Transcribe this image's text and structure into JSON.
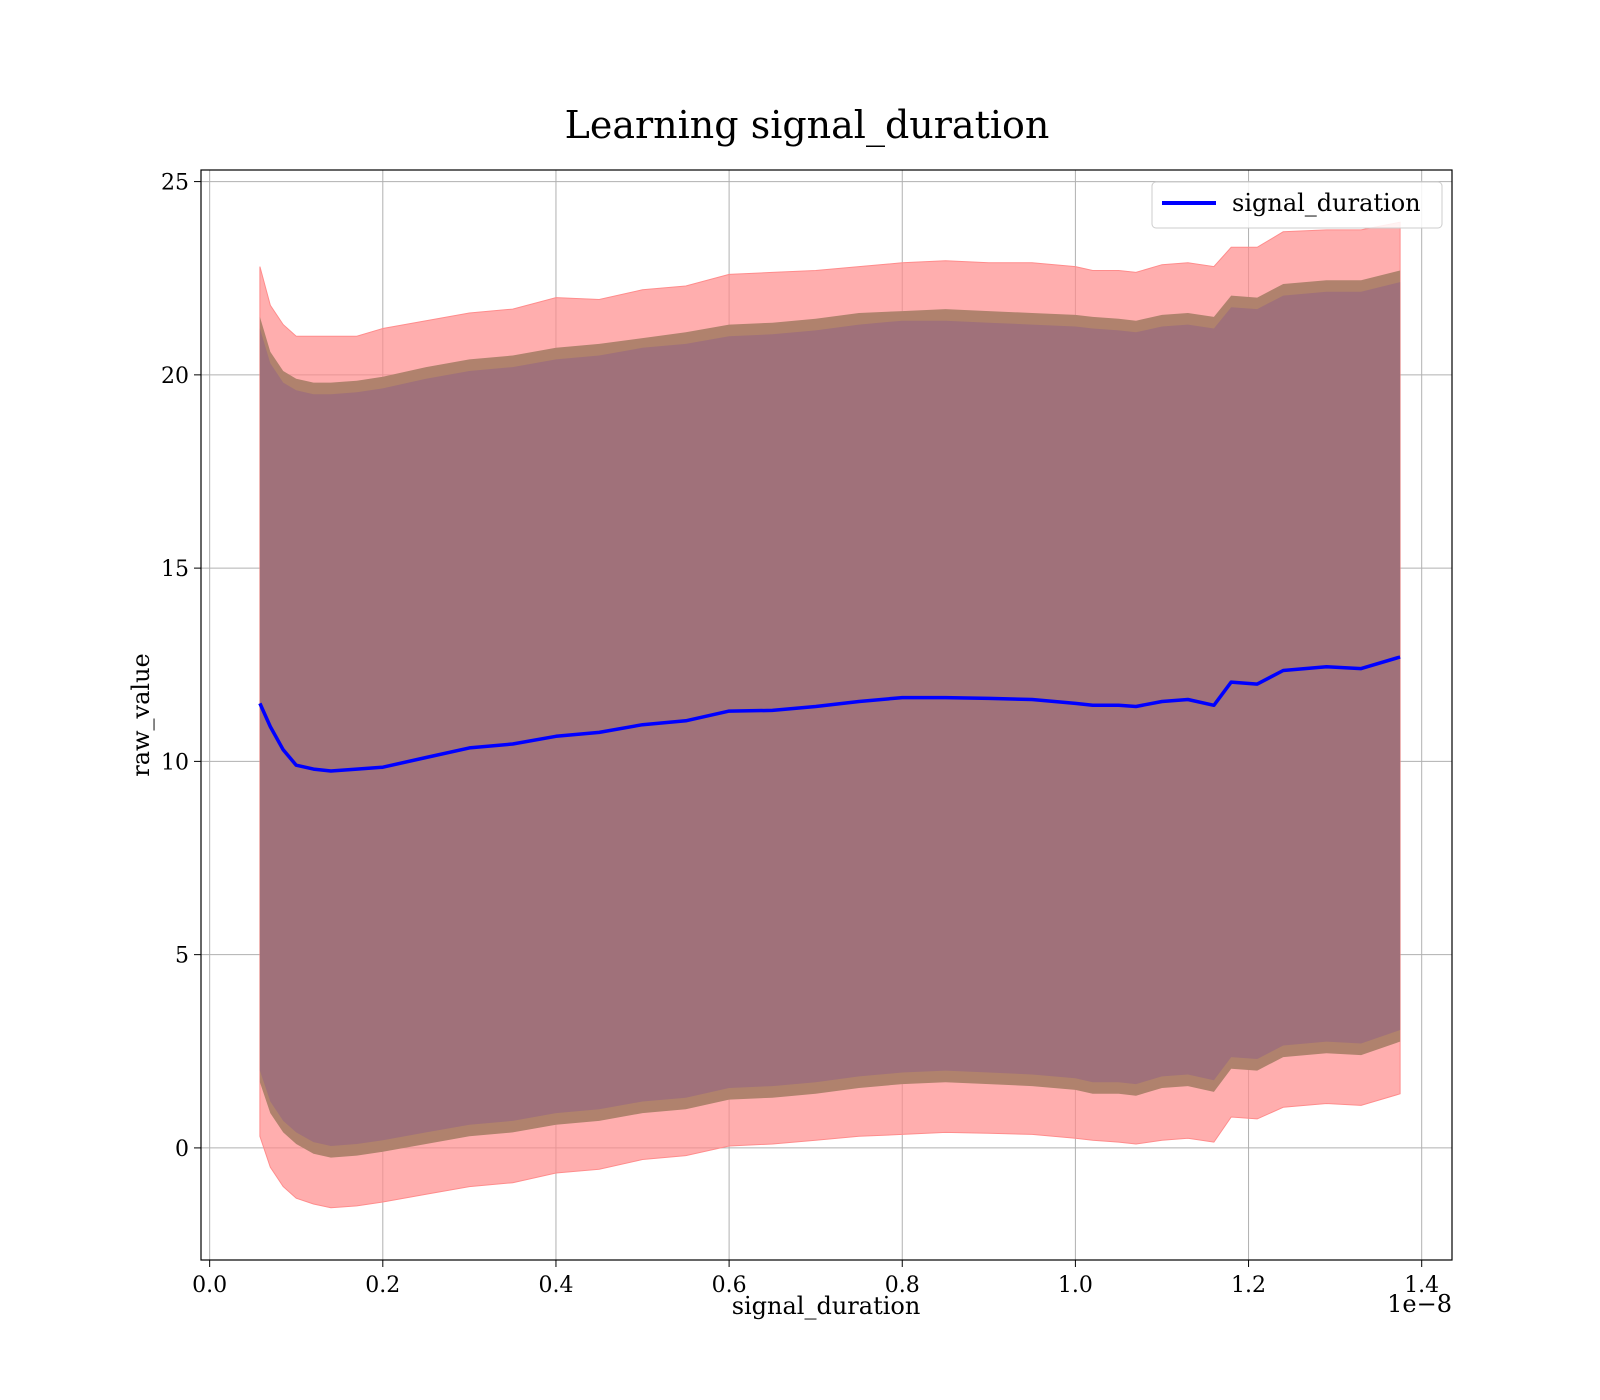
{
  "chart_data": {
    "type": "line",
    "title": "Learning signal_duration",
    "xlabel": "signal_duration",
    "ylabel": "raw_value",
    "x_offset_label": "1e−8",
    "x_scale": 1e-08,
    "xlim": [
      -0.01,
      1.435
    ],
    "ylim": [
      -2.9,
      25.3
    ],
    "x_ticks": [
      0.0,
      0.2,
      0.4,
      0.6,
      0.8,
      1.0,
      1.2,
      1.4
    ],
    "x_tick_labels": [
      "0.0",
      "0.2",
      "0.4",
      "0.6",
      "0.8",
      "1.0",
      "1.2",
      "1.4"
    ],
    "y_ticks": [
      0,
      5,
      10,
      15,
      20,
      25
    ],
    "y_tick_labels": [
      "0",
      "5",
      "10",
      "15",
      "20",
      "25"
    ],
    "grid": true,
    "legend": {
      "placement": "top-right",
      "entries": [
        "signal_duration"
      ]
    },
    "colors": {
      "line": "#0000ff",
      "outer_band": "#ff8c8c",
      "mid_band": "#b0826d",
      "inner_band": "#a0717a",
      "grid": "#b0b0b0"
    },
    "x": [
      0.058,
      0.07,
      0.085,
      0.1,
      0.12,
      0.14,
      0.17,
      0.2,
      0.25,
      0.3,
      0.35,
      0.4,
      0.45,
      0.5,
      0.55,
      0.6,
      0.65,
      0.7,
      0.75,
      0.8,
      0.85,
      0.9,
      0.95,
      1.0,
      1.02,
      1.05,
      1.07,
      1.1,
      1.13,
      1.16,
      1.18,
      1.21,
      1.24,
      1.29,
      1.33,
      1.375
    ],
    "series": [
      {
        "name": "signal_duration",
        "values": [
          11.5,
          10.9,
          10.3,
          9.9,
          9.8,
          9.75,
          9.8,
          9.85,
          10.1,
          10.35,
          10.45,
          10.65,
          10.75,
          10.95,
          11.05,
          11.3,
          11.32,
          11.42,
          11.55,
          11.65,
          11.65,
          11.63,
          11.6,
          11.5,
          11.45,
          11.45,
          11.42,
          11.55,
          11.6,
          11.45,
          12.05,
          12.0,
          12.35,
          12.45,
          12.4,
          12.7
        ]
      }
    ],
    "bands": [
      {
        "role": "outer",
        "upper": [
          22.8,
          21.8,
          21.3,
          21.0,
          21.0,
          21.0,
          21.0,
          21.2,
          21.4,
          21.6,
          21.7,
          22.0,
          21.95,
          22.2,
          22.3,
          22.6,
          22.65,
          22.7,
          22.8,
          22.9,
          22.95,
          22.9,
          22.9,
          22.8,
          22.7,
          22.7,
          22.65,
          22.85,
          22.9,
          22.8,
          23.3,
          23.3,
          23.7,
          23.75,
          23.75,
          23.95
        ],
        "lower": [
          0.3,
          -0.5,
          -1.0,
          -1.3,
          -1.45,
          -1.55,
          -1.5,
          -1.4,
          -1.2,
          -1.0,
          -0.9,
          -0.65,
          -0.55,
          -0.3,
          -0.2,
          0.05,
          0.1,
          0.2,
          0.3,
          0.35,
          0.4,
          0.38,
          0.35,
          0.25,
          0.2,
          0.15,
          0.1,
          0.2,
          0.25,
          0.15,
          0.8,
          0.75,
          1.05,
          1.15,
          1.1,
          1.4
        ]
      },
      {
        "role": "middle",
        "upper": [
          21.5,
          20.6,
          20.1,
          19.9,
          19.8,
          19.8,
          19.85,
          19.95,
          20.2,
          20.4,
          20.5,
          20.7,
          20.8,
          20.95,
          21.1,
          21.3,
          21.35,
          21.45,
          21.6,
          21.65,
          21.7,
          21.65,
          21.6,
          21.55,
          21.5,
          21.45,
          21.4,
          21.55,
          21.6,
          21.5,
          22.05,
          22.0,
          22.35,
          22.45,
          22.45,
          22.7
        ],
        "lower": [
          1.7,
          0.9,
          0.4,
          0.1,
          -0.15,
          -0.25,
          -0.2,
          -0.1,
          0.1,
          0.3,
          0.4,
          0.6,
          0.7,
          0.9,
          1.0,
          1.25,
          1.3,
          1.4,
          1.55,
          1.65,
          1.7,
          1.65,
          1.6,
          1.5,
          1.4,
          1.4,
          1.35,
          1.55,
          1.6,
          1.45,
          2.05,
          2.0,
          2.35,
          2.45,
          2.4,
          2.75
        ]
      },
      {
        "role": "inner",
        "upper": [
          21.2,
          20.3,
          19.8,
          19.6,
          19.5,
          19.5,
          19.55,
          19.65,
          19.9,
          20.1,
          20.2,
          20.4,
          20.5,
          20.7,
          20.8,
          21.0,
          21.05,
          21.15,
          21.3,
          21.4,
          21.4,
          21.35,
          21.3,
          21.25,
          21.2,
          21.15,
          21.1,
          21.25,
          21.3,
          21.2,
          21.75,
          21.7,
          22.05,
          22.15,
          22.15,
          22.4
        ]
      }
    ]
  }
}
